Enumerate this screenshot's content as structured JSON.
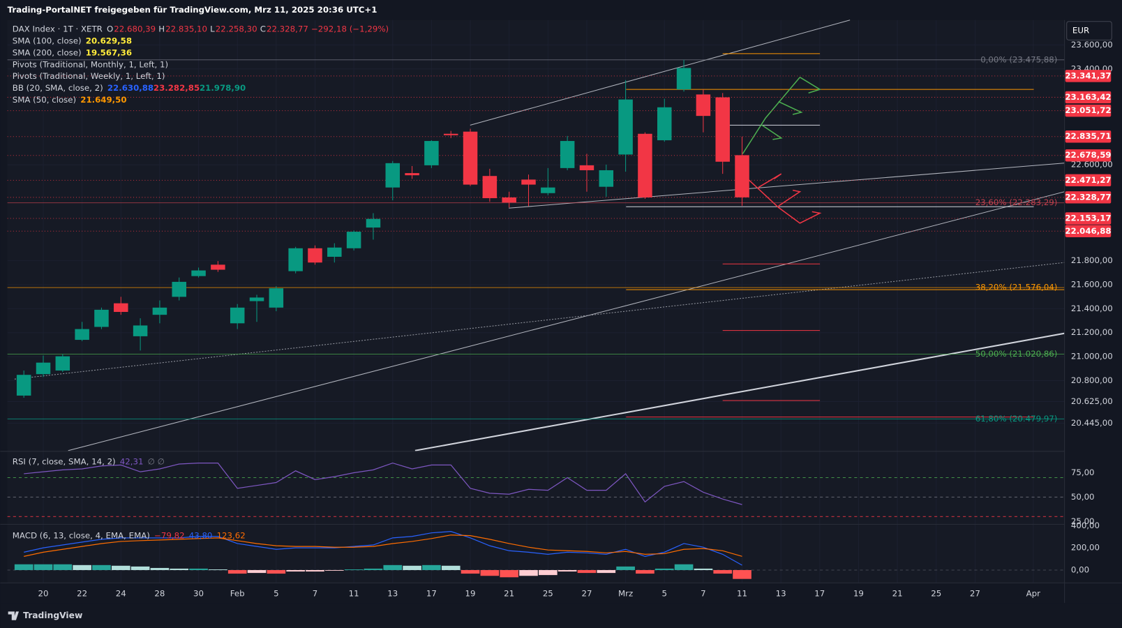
{
  "header": {
    "title": "Trading-PortalNET freigegeben für TradingView.com, Mrz 11, 2025 20:36 UTC+1",
    "currency": "EUR",
    "brand": "TradingView"
  },
  "chart_data": [
    {
      "type": "candlestick",
      "title": "DAX Index · 1T · XETR",
      "ohlc_legend": [
        {
          "key": "O",
          "value": "22.680,39"
        },
        {
          "key": "H",
          "value": "22.835,10"
        },
        {
          "key": "L",
          "value": "22.258,30"
        },
        {
          "key": "C",
          "value": "22.328,77"
        }
      ],
      "change": "−292,18 (−1,29%)",
      "indicators": [
        {
          "name": "SMA (100, close)",
          "values": [
            "20.629,58"
          ],
          "colors": [
            "#ffeb3b"
          ]
        },
        {
          "name": "SMA (200, close)",
          "values": [
            "19.567,36"
          ],
          "colors": [
            "#ffeb3b"
          ]
        },
        {
          "name": "Pivots (Traditional, Monthly, 1, Left, 1)",
          "values": [],
          "colors": []
        },
        {
          "name": "Pivots (Traditional, Weekly, 1, Left, 1)",
          "values": [],
          "colors": []
        },
        {
          "name": "BB (20, SMA, close, 2)",
          "values": [
            "22.630,88",
            "23.282,85",
            "21.978,90"
          ],
          "colors": [
            "#2962ff",
            "#f23645",
            "#089981"
          ]
        },
        {
          "name": "SMA (50, close)",
          "values": [
            "21.649,50"
          ],
          "colors": [
            "#ff9800"
          ]
        }
      ],
      "categories": [
        null,
        "20",
        null,
        "22",
        null,
        "24",
        null,
        "28",
        null,
        "30",
        null,
        "Feb",
        null,
        "5",
        null,
        "7",
        null,
        "11",
        null,
        "13",
        null,
        "17",
        null,
        "19",
        null,
        "21",
        null,
        "25",
        null,
        "27",
        null,
        "Mrz",
        null,
        "5",
        null,
        "7",
        null,
        "11"
      ],
      "future_categories": [
        "13",
        "17",
        "19",
        "21",
        "25",
        "27",
        "Apr"
      ],
      "open": [
        20675,
        20854,
        20884,
        21140,
        21248,
        21445,
        21170,
        21349,
        21499,
        21672,
        21767,
        21278,
        21463,
        21409,
        21713,
        21904,
        21833,
        21904,
        22077,
        22411,
        22531,
        22596,
        22859,
        22877,
        22507,
        22328,
        22477,
        22364,
        22573,
        22596,
        22417,
        22686,
        22859,
        22805,
        23229,
        23187,
        23163,
        22680.39
      ],
      "high": [
        20884,
        21009,
        21021,
        21290,
        21409,
        21499,
        21320,
        21469,
        21660,
        21743,
        21797,
        21439,
        21516,
        21588,
        21916,
        21928,
        21946,
        22053,
        22197,
        22632,
        22590,
        22805,
        22883,
        22901,
        22567,
        22376,
        22519,
        22573,
        22841,
        22692,
        22602,
        23307,
        22871,
        23151,
        23476,
        23229,
        23199,
        22835.1
      ],
      "low": [
        20657,
        20830,
        20872,
        21129,
        21230,
        21349,
        21051,
        21278,
        21469,
        21660,
        21707,
        21230,
        21290,
        21379,
        21695,
        21767,
        21785,
        21886,
        21976,
        22304,
        22483,
        22573,
        22823,
        22423,
        22292,
        22244,
        22256,
        22346,
        22555,
        22376,
        22334,
        22543,
        22316,
        22793,
        23211,
        22871,
        22525,
        22258.3
      ],
      "close": [
        20848,
        20950,
        21003,
        21230,
        21391,
        21373,
        21260,
        21409,
        21624,
        21719,
        21725,
        21409,
        21493,
        21570,
        21904,
        21785,
        21910,
        22042,
        22149,
        22614,
        22513,
        22799,
        22847,
        22435,
        22322,
        22286,
        22435,
        22411,
        22799,
        22555,
        22555,
        23145,
        22328,
        23080,
        23408,
        23008,
        22626,
        22328.77
      ],
      "up_color": "#089981",
      "down_color": "#f23645",
      "ylim": [
        20216,
        23808
      ],
      "yticks": [
        {
          "value": 23600,
          "label": "23.600,00"
        },
        {
          "value": 23400,
          "label": "23.400,00"
        },
        {
          "value": 22600,
          "label": "22.600,00"
        },
        {
          "value": 21800,
          "label": "21.800,00"
        },
        {
          "value": 21600,
          "label": "21.600,00"
        },
        {
          "value": 21400,
          "label": "21.400,00"
        },
        {
          "value": 21200,
          "label": "21.200,00"
        },
        {
          "value": 21000,
          "label": "21.000,00"
        },
        {
          "value": 20800,
          "label": "20.800,00"
        },
        {
          "value": 20625,
          "label": "20.625,00"
        },
        {
          "value": 20445,
          "label": "20.445,00"
        }
      ],
      "levels": [
        {
          "value": 23341.37,
          "label": "23.341,37"
        },
        {
          "value": 23163.42,
          "label": "23.163,42"
        },
        {
          "value": 23051.72,
          "label": "23.051,72"
        },
        {
          "value": 22835.71,
          "label": "22.835,71"
        },
        {
          "value": 22678.59,
          "label": "22.678,59"
        },
        {
          "value": 22471.27,
          "label": "22.471,27"
        },
        {
          "value": 22328.77,
          "label": "22.328,77"
        },
        {
          "value": 22153.17,
          "label": "22.153,17"
        },
        {
          "value": 22046.88,
          "label": "22.046,88"
        }
      ],
      "level_color": "#f23645",
      "fib": [
        {
          "value": 23475.88,
          "label": "0,00% (23.475,88)",
          "color": "#787b86"
        },
        {
          "value": 22283.29,
          "label": "23,60% (22.283,29)",
          "color": "#c2414e"
        },
        {
          "value": 21576.04,
          "label": "38,20% (21.576,04)",
          "color": "#ff9800"
        },
        {
          "value": 21020.86,
          "label": "50,00% (21.020,86)",
          "color": "#4caf50"
        },
        {
          "value": 20479.97,
          "label": "61,80% (20.479,97)",
          "color": "#089981"
        }
      ]
    },
    {
      "type": "line",
      "title": "RSI (7, close, SMA, 14, 2)",
      "legend_values": [
        "42,31",
        "∅ ∅"
      ],
      "legend_colors": [
        "#7e57c2",
        "#787b86"
      ],
      "values": [
        74,
        76,
        78,
        79,
        82,
        83,
        76,
        79,
        84,
        85,
        85,
        59,
        62,
        65,
        77,
        68,
        71,
        75,
        78,
        85,
        79,
        83,
        83,
        59,
        54,
        53,
        58,
        57,
        70,
        57,
        57,
        74,
        45,
        61,
        66,
        55,
        48,
        42.31
      ],
      "color": "#7e57c2",
      "ylim": [
        22.8,
        96.3
      ],
      "yticks": [
        {
          "value": 75,
          "label": "75,00"
        },
        {
          "value": 50,
          "label": "50,00"
        },
        {
          "value": 25,
          "label": "25,00"
        }
      ],
      "bands": [
        {
          "value": 70,
          "color": "#4caf50"
        },
        {
          "value": 50,
          "color": "#787b86"
        },
        {
          "value": 30,
          "color": "#f23645"
        }
      ]
    },
    {
      "type": "macd",
      "title": "MACD (6, 13, close, 4, EMA, EMA)",
      "legend_values": [
        "−79,82",
        "43,80",
        "123,62"
      ],
      "legend_colors": [
        "#f23645",
        "#2962ff",
        "#ff6d00"
      ],
      "histogram": [
        52,
        52,
        52,
        45,
        45,
        39,
        32,
        19,
        13,
        13,
        6,
        -32,
        -26,
        -32,
        -13,
        -13,
        -6,
        6,
        13,
        45,
        39,
        45,
        39,
        -32,
        -52,
        -65,
        -52,
        -45,
        -13,
        -26,
        -26,
        32,
        -32,
        13,
        52,
        13,
        -32,
        -79.82
      ],
      "series": [
        {
          "name": "MACD",
          "color": "#2962ff",
          "values": [
            161,
            200,
            226,
            252,
            277,
            290,
            290,
            290,
            290,
            303,
            303,
            239,
            213,
            187,
            200,
            200,
            200,
            213,
            226,
            290,
            303,
            335,
            348,
            290,
            219,
            174,
            161,
            142,
            161,
            155,
            142,
            187,
            123,
            161,
            239,
            206,
            142,
            43.8
          ]
        },
        {
          "name": "Signal",
          "color": "#ff6d00",
          "values": [
            123,
            161,
            187,
            213,
            239,
            258,
            265,
            271,
            277,
            284,
            290,
            265,
            239,
            219,
            213,
            213,
            206,
            206,
            213,
            239,
            258,
            284,
            316,
            310,
            277,
            239,
            206,
            181,
            174,
            168,
            155,
            168,
            142,
            148,
            187,
            194,
            174,
            123.62
          ]
        }
      ],
      "hist_colors": [
        "#26a69a",
        "#b2dfdb",
        "#ffcdd2",
        "#ff5252"
      ],
      "ylim": [
        -116,
        406
      ],
      "yticks": [
        {
          "value": 400,
          "label": "400,00"
        },
        {
          "value": 200,
          "label": "200,00"
        },
        {
          "value": 0,
          "label": "0,00"
        }
      ]
    }
  ]
}
